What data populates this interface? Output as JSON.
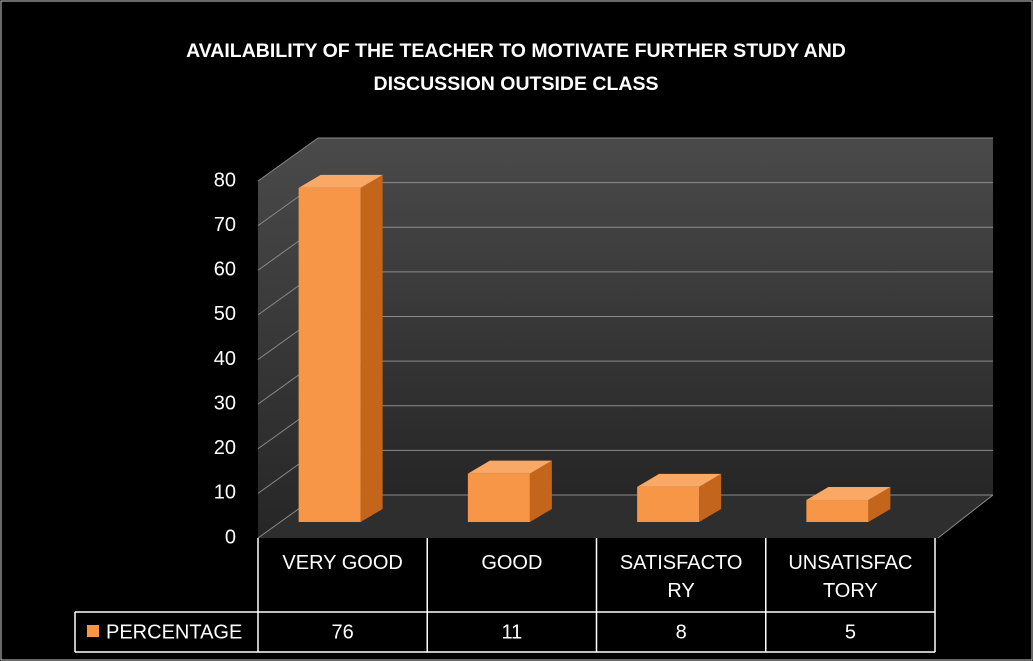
{
  "chart_data": {
    "type": "bar3d",
    "title": [
      "AVAILABILITY OF THE TEACHER TO MOTIVATE FURTHER STUDY AND",
      "DISCUSSION OUTSIDE CLASS"
    ],
    "categories": [
      "VERY GOOD",
      "GOOD",
      "SATISFACTORY",
      "UNSATISFACTORY"
    ],
    "series": [
      {
        "name": "PERCENTAGE",
        "color": "#f79646",
        "values": [
          76,
          11,
          8,
          5
        ]
      }
    ],
    "ylim": [
      0,
      80
    ],
    "yticks": [
      0,
      10,
      20,
      30,
      40,
      50,
      60,
      70,
      80
    ],
    "grid": true,
    "data_table": true
  }
}
